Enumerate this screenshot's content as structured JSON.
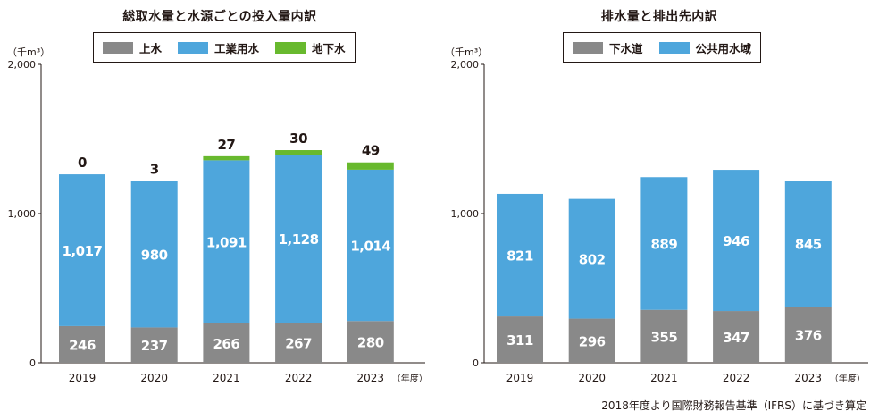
{
  "charts": [
    {
      "title": "総取水量と水源ごとの投入量内訳",
      "unit": "（千m³）",
      "legend": [
        {
          "label": "上水",
          "color": "#898989"
        },
        {
          "label": "工業用水",
          "color": "#4ea6dc"
        },
        {
          "label": "地下水",
          "color": "#68b92e"
        }
      ],
      "year_suffix": "（年度）"
    },
    {
      "title": "排水量と排出先内訳",
      "unit": "（千m³）",
      "legend": [
        {
          "label": "下水道",
          "color": "#898989"
        },
        {
          "label": "公共用水域",
          "color": "#4ea6dc"
        }
      ],
      "year_suffix": "（年度）"
    }
  ],
  "footnote": "2018年度より国際財務報告基準（IFRS）に基づき算定",
  "chart_data": [
    {
      "type": "bar",
      "stacked": true,
      "title": "総取水量と水源ごとの投入量内訳",
      "ylabel": "（千m³）",
      "xlabel": "（年度）",
      "categories": [
        "2019",
        "2020",
        "2021",
        "2022",
        "2023"
      ],
      "ylim": [
        0,
        2000
      ],
      "yticks": [
        "0",
        "1,000",
        "2,000"
      ],
      "series": [
        {
          "name": "上水",
          "values": [
            246,
            237,
            266,
            267,
            280
          ],
          "labels": [
            "246",
            "237",
            "266",
            "267",
            "280"
          ],
          "color": "#898989"
        },
        {
          "name": "工業用水",
          "values": [
            1017,
            980,
            1091,
            1128,
            1014
          ],
          "labels": [
            "1,017",
            "980",
            "1,091",
            "1,128",
            "1,014"
          ],
          "color": "#4ea6dc"
        },
        {
          "name": "地下水",
          "values": [
            0,
            3,
            27,
            30,
            49
          ],
          "labels": [
            "0",
            "3",
            "27",
            "30",
            "49"
          ],
          "color": "#68b92e"
        }
      ]
    },
    {
      "type": "bar",
      "stacked": true,
      "title": "排水量と排出先内訳",
      "ylabel": "（千m³）",
      "xlabel": "（年度）",
      "categories": [
        "2019",
        "2020",
        "2021",
        "2022",
        "2023"
      ],
      "ylim": [
        0,
        2000
      ],
      "yticks": [
        "0",
        "1,000",
        "2,000"
      ],
      "series": [
        {
          "name": "下水道",
          "values": [
            311,
            296,
            355,
            347,
            376
          ],
          "labels": [
            "311",
            "296",
            "355",
            "347",
            "376"
          ],
          "color": "#898989"
        },
        {
          "name": "公共用水域",
          "values": [
            821,
            802,
            889,
            946,
            845
          ],
          "labels": [
            "821",
            "802",
            "889",
            "946",
            "845"
          ],
          "color": "#4ea6dc"
        }
      ]
    }
  ]
}
